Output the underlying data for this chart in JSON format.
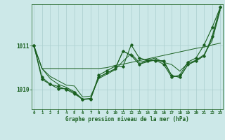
{
  "xlabel": "Graphe pression niveau de la mer (hPa)",
  "x_ticks": [
    0,
    1,
    2,
    3,
    4,
    5,
    6,
    7,
    8,
    9,
    10,
    11,
    12,
    13,
    14,
    15,
    16,
    17,
    18,
    19,
    20,
    21,
    22,
    23
  ],
  "ylim": [
    1009.55,
    1011.95
  ],
  "yticks": [
    1010,
    1011
  ],
  "bg_color": "#cce8e8",
  "grid_color": "#aacece",
  "line_color": "#1a6020",
  "lines": {
    "line1": [
      1011.0,
      1010.48,
      1010.48,
      1010.48,
      1010.48,
      1010.48,
      1010.48,
      1010.48,
      1010.48,
      1010.5,
      1010.55,
      1010.58,
      1010.62,
      1010.66,
      1010.7,
      1010.74,
      1010.78,
      1010.82,
      1010.86,
      1010.9,
      1010.94,
      1010.97,
      1011.02,
      1011.06
    ],
    "line2": [
      1011.0,
      1010.48,
      1010.3,
      1010.2,
      1010.1,
      1010.08,
      1009.83,
      1009.85,
      1010.25,
      1010.35,
      1010.45,
      1010.65,
      1010.82,
      1010.62,
      1010.67,
      1010.72,
      1010.62,
      1010.57,
      1010.42,
      1010.6,
      1010.67,
      1010.8,
      1011.12,
      1011.82
    ],
    "line3": [
      1011.0,
      1010.48,
      1010.25,
      1010.12,
      1010.05,
      1009.95,
      1009.78,
      1009.8,
      1010.28,
      1010.38,
      1010.47,
      1010.88,
      1010.78,
      1010.58,
      1010.63,
      1010.68,
      1010.63,
      1010.32,
      1010.28,
      1010.57,
      1010.65,
      1010.77,
      1011.18,
      1011.85
    ]
  },
  "marker_lines": {
    "mline1": [
      1011.0,
      1010.28,
      1010.12,
      1010.02,
      1010.02,
      1009.93,
      1009.77,
      1009.79,
      1010.28,
      1010.38,
      1010.47,
      1010.88,
      1010.78,
      1010.58,
      1010.66,
      1010.66,
      1010.66,
      1010.32,
      1010.28,
      1010.57,
      1010.66,
      1010.77,
      1011.22,
      1011.88
    ],
    "mline2": [
      1011.0,
      1010.23,
      1010.12,
      1010.07,
      1010.0,
      1009.9,
      1009.78,
      1009.78,
      1010.33,
      1010.43,
      1010.53,
      1010.53,
      1011.02,
      1010.72,
      1010.67,
      1010.67,
      1010.58,
      1010.28,
      1010.33,
      1010.63,
      1010.72,
      1011.02,
      1011.42,
      1011.88
    ]
  }
}
